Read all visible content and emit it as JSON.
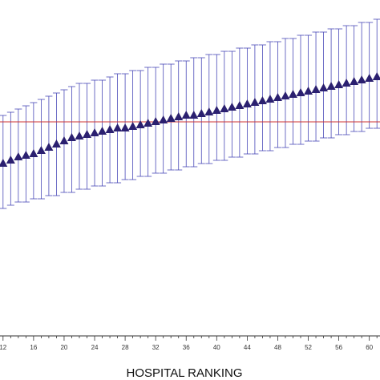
{
  "chart_data": {
    "type": "scatter",
    "xlabel": "HOSPITAL RANKING",
    "ylabel": "",
    "x_ticks": [
      12,
      16,
      20,
      24,
      28,
      32,
      36,
      40,
      44,
      48,
      52,
      56,
      60
    ],
    "x_tick_labels": [
      "12",
      "16",
      "20",
      "24",
      "28",
      "32",
      "36",
      "40",
      "44",
      "48",
      "52",
      "56",
      "60"
    ],
    "xlim": [
      11.6,
      61.4
    ],
    "ylim": [
      0,
      100
    ],
    "reference_line": {
      "y": 62,
      "color": "#cc3333"
    },
    "point_color": "#2b2070",
    "errorbar_color": "#4a4ab8",
    "grid": false,
    "series": [
      {
        "x": [
          12,
          13,
          14,
          15,
          16,
          17,
          18,
          19,
          20,
          21,
          22,
          23,
          24,
          25,
          26,
          27,
          28,
          29,
          30,
          31,
          32,
          33,
          34,
          35,
          36,
          37,
          38,
          39,
          40,
          41,
          42,
          43,
          44,
          45,
          46,
          47,
          48,
          49,
          50,
          51,
          52,
          53,
          54,
          55,
          56,
          57,
          58,
          59,
          60,
          61
        ],
        "y": [
          49,
          50,
          51,
          51.5,
          52,
          53,
          54,
          55,
          56,
          57,
          57.5,
          58,
          58.5,
          59,
          59.5,
          60,
          60,
          60.5,
          61,
          61.5,
          62,
          62.5,
          63,
          63.5,
          64,
          64,
          64.5,
          65,
          65.5,
          66,
          66.5,
          67,
          67.5,
          68,
          68.5,
          69,
          69.5,
          70,
          70.5,
          71,
          71.5,
          72,
          72.5,
          73,
          73.5,
          74,
          74.5,
          75,
          75.5,
          76
        ],
        "lower": [
          35,
          36,
          37,
          37,
          38,
          38,
          39,
          39,
          40,
          40,
          41,
          41,
          42,
          42,
          43,
          43,
          44,
          44,
          45,
          45,
          46,
          46,
          47,
          47,
          48,
          48,
          49,
          49,
          50,
          50,
          51,
          51,
          52,
          52,
          53,
          53,
          54,
          54,
          55,
          55,
          56,
          56,
          57,
          57,
          58,
          58,
          59,
          59,
          60,
          60
        ],
        "upper": [
          64,
          65,
          66,
          67,
          68,
          69,
          70,
          71,
          72,
          73,
          74,
          74,
          75,
          75,
          76,
          77,
          77,
          78,
          78,
          79,
          79,
          80,
          80,
          81,
          81,
          82,
          82,
          83,
          83,
          84,
          84,
          85,
          85,
          86,
          86,
          87,
          87,
          88,
          88,
          89,
          89,
          90,
          90,
          91,
          91,
          92,
          92,
          93,
          93,
          94
        ]
      }
    ]
  }
}
